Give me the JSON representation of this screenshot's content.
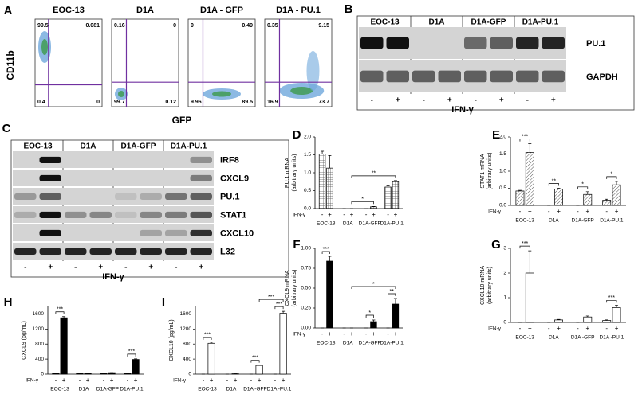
{
  "flow": {
    "label": "A",
    "y_axis": "CD11b",
    "x_axis": "GFP",
    "plots": [
      {
        "title": "EOC-13",
        "quadrants": [
          "99.5",
          "0.081",
          "0.4",
          "0"
        ]
      },
      {
        "title": "D1A",
        "quadrants": [
          "0.16",
          "0",
          "99.7",
          "0.12"
        ]
      },
      {
        "title": "D1A - GFP",
        "quadrants": [
          "0",
          "0.49",
          "9.96",
          "89.5"
        ]
      },
      {
        "title": "D1A - PU.1",
        "quadrants": [
          "0.35",
          "9.15",
          "16.9",
          "73.7"
        ]
      }
    ]
  },
  "blot_b": {
    "label": "B",
    "groups": [
      "EOC-13",
      "D1A",
      "D1A-GFP",
      "D1A-PU.1"
    ],
    "rows": [
      "PU.1",
      "GAPDH"
    ],
    "lane_signs": [
      "-",
      "+",
      "-",
      "+",
      "-",
      "+",
      "-",
      "+"
    ],
    "treatment": "IFN-γ"
  },
  "blot_c": {
    "label": "C",
    "groups": [
      "EOC-13",
      "D1A",
      "D1A-GFP",
      "D1A-PU.1"
    ],
    "rows": [
      "IRF8",
      "CXCL9",
      "PU.1",
      "STAT1",
      "CXCL10",
      "L32"
    ],
    "lane_signs": [
      "-",
      "+",
      "-",
      "+",
      "-",
      "+",
      "-",
      "+"
    ],
    "treatment": "IFN-γ"
  },
  "chart_data": [
    {
      "type": "bar",
      "label": "D",
      "y_label": [
        "PU.1 mRNA",
        "(arbitrary units)"
      ],
      "x_title": "IFN-γ",
      "categories": [
        "-",
        "+",
        "-",
        "+",
        "-",
        "+",
        "-",
        "+"
      ],
      "groups": [
        "EOC-13",
        "D1A",
        "D1A-GFP",
        "D1A-PU.1"
      ],
      "values": [
        1.52,
        1.13,
        0,
        0,
        0,
        0.05,
        0.6,
        0.75
      ],
      "errors": [
        0.08,
        0.35,
        0,
        0,
        0,
        0.01,
        0.03,
        0.03
      ],
      "color": "#bbbbbb",
      "pattern": "crosshatch",
      "ylim": [
        0,
        2
      ],
      "yticks": [
        {
          "value": 0,
          "label": "0.0"
        },
        {
          "value": 0.5,
          "label": "0.5"
        },
        {
          "value": 1,
          "label": "1.0"
        },
        {
          "value": 1.5,
          "label": "1.5"
        },
        {
          "value": 2,
          "label": "2.0"
        }
      ],
      "annotations": [
        {
          "text": "*",
          "bars": [
            3,
            5
          ]
        },
        {
          "text": "**",
          "bars": [
            3,
            7
          ]
        }
      ]
    },
    {
      "type": "bar",
      "label": "E",
      "y_label": [
        "STAT1 mRNA",
        "(arbitrary units)"
      ],
      "x_title": "IFN-γ",
      "categories": [
        "-",
        "+",
        "-",
        "+",
        "-",
        "+",
        "-",
        "+"
      ],
      "groups": [
        "EOC-13",
        "D1A",
        "D1A-GFP",
        "D1A-PU.1"
      ],
      "values": [
        0.42,
        1.55,
        0,
        0.48,
        0,
        0.32,
        0.15,
        0.6
      ],
      "errors": [
        0.02,
        0.25,
        0,
        0.02,
        0,
        0.08,
        0.03,
        0.1
      ],
      "color": "#bbbbbb",
      "pattern": "hatch",
      "ylim": [
        0,
        2
      ],
      "yticks": [
        {
          "value": 0,
          "label": "0.0"
        },
        {
          "value": 0.5,
          "label": "0.5"
        },
        {
          "value": 1,
          "label": "1.0"
        },
        {
          "value": 1.5,
          "label": "1.5"
        },
        {
          "value": 2,
          "label": "2.0"
        }
      ],
      "annotations": [
        {
          "text": "***",
          "bars": [
            0,
            1
          ]
        },
        {
          "text": "**",
          "bars": [
            2,
            3
          ]
        },
        {
          "text": "*",
          "bars": [
            4,
            5
          ]
        },
        {
          "text": "*",
          "bars": [
            6,
            7
          ]
        }
      ]
    },
    {
      "type": "bar",
      "label": "F",
      "y_label": [
        "CXCL9 mRNA",
        "(arbitrary units)"
      ],
      "x_title": "IFN-γ",
      "categories": [
        "-",
        "+",
        "-",
        "+",
        "-",
        "+",
        "-",
        "+"
      ],
      "groups": [
        "EOC-13",
        "D1A",
        "D1A-GFP",
        "D1A-PU.1"
      ],
      "values": [
        0,
        0.84,
        0,
        0,
        0,
        0.08,
        0,
        0.3
      ],
      "errors": [
        0,
        0.06,
        0,
        0,
        0,
        0.02,
        0,
        0.07
      ],
      "color": "#000000",
      "ylim": [
        0,
        1
      ],
      "yticks": [
        {
          "value": 0,
          "label": "0.00"
        },
        {
          "value": 0.25,
          "label": "0.25"
        },
        {
          "value": 0.5,
          "label": "0.50"
        },
        {
          "value": 0.75,
          "label": "0.75"
        },
        {
          "value": 1,
          "label": "1.00"
        }
      ],
      "annotations": [
        {
          "text": "***",
          "bars": [
            0,
            1
          ]
        },
        {
          "text": "*",
          "bars": [
            4,
            5
          ]
        },
        {
          "text": "**",
          "bars": [
            6,
            7
          ]
        },
        {
          "text": "*",
          "bars": [
            3,
            7
          ]
        }
      ]
    },
    {
      "type": "bar",
      "label": "G",
      "y_label": [
        "CXCL10 mRNA",
        "(arbitrary units)"
      ],
      "x_title": "IFN-γ",
      "categories": [
        "-",
        "+",
        "-",
        "+",
        "-",
        "+",
        "-",
        "+"
      ],
      "groups": [
        "EOC-13",
        "D1A",
        "D1A -GFP",
        "D1A -PU.1"
      ],
      "values": [
        0,
        2.0,
        0,
        0.1,
        0,
        0.22,
        0.08,
        0.6
      ],
      "errors": [
        0,
        0.9,
        0,
        0.02,
        0,
        0.04,
        0.02,
        0.1
      ],
      "color": "#ffffff",
      "ylim": [
        0,
        3
      ],
      "yticks": [
        0,
        1,
        2,
        3
      ],
      "annotations": [
        {
          "text": "***",
          "bars": [
            0,
            1
          ]
        },
        {
          "text": "***",
          "bars": [
            6,
            7
          ]
        }
      ]
    },
    {
      "type": "bar",
      "label": "H",
      "y_label": [
        "CXCL9 (pg/mL)"
      ],
      "x_title": "IFN-γ",
      "categories": [
        "-",
        "+",
        "-",
        "+",
        "-",
        "+",
        "-",
        "+"
      ],
      "groups": [
        "EOC-13",
        "D1A",
        "D1A-GFP",
        "D1A-PU.1"
      ],
      "values": [
        20,
        1500,
        20,
        30,
        20,
        40,
        20,
        390
      ],
      "errors": [
        0,
        30,
        0,
        0,
        0,
        0,
        0,
        15
      ],
      "color": "#000000",
      "ylim": [
        0,
        1800
      ],
      "yticks": [
        0,
        400,
        800,
        1200,
        1600
      ],
      "annotations": [
        {
          "text": "***",
          "bars": [
            0,
            1
          ]
        },
        {
          "text": "***",
          "bars": [
            6,
            7
          ]
        }
      ]
    },
    {
      "type": "bar",
      "label": "I",
      "y_label": [
        "CXCL10 (pg/mL)"
      ],
      "x_title": "IFN-γ",
      "categories": [
        "-",
        "+",
        "-",
        "+",
        "-",
        "+",
        "-",
        "+"
      ],
      "groups": [
        "EOC-13",
        "D1A",
        "D1A -GFP",
        "D1A -PU.1"
      ],
      "values": [
        0,
        820,
        0,
        10,
        0,
        230,
        0,
        1620
      ],
      "errors": [
        0,
        30,
        0,
        0,
        0,
        10,
        0,
        50
      ],
      "color": "#ffffff",
      "ylim": [
        0,
        1800
      ],
      "yticks": [
        0,
        400,
        800,
        1200,
        1600
      ],
      "annotations": [
        {
          "text": "***",
          "bars": [
            0,
            1
          ]
        },
        {
          "text": "***",
          "bars": [
            4,
            5
          ]
        },
        {
          "text": "***",
          "bars": [
            6,
            7
          ]
        },
        {
          "text": "***",
          "bars": [
            5,
            7
          ]
        }
      ]
    }
  ]
}
